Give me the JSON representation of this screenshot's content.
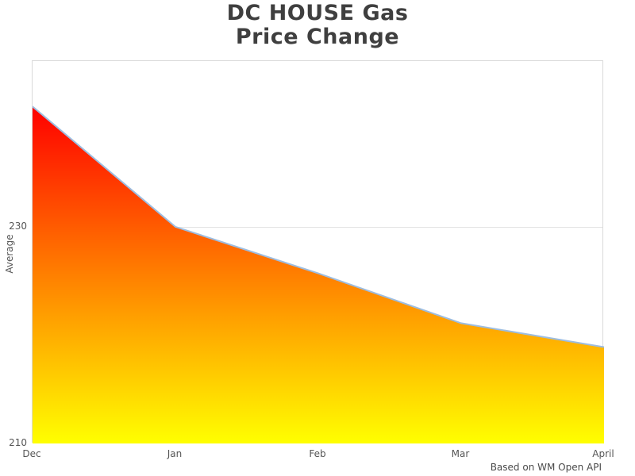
{
  "chart_data": {
    "type": "area",
    "title_lines": [
      "DC HOUSE Gas",
      "Price Change"
    ],
    "title": "DC HOUSE Gas Price Change",
    "categories": [
      "Dec",
      "Jan",
      "Feb",
      "Mar",
      "April"
    ],
    "series": [
      {
        "name": "Average",
        "values": [
          241.1,
          230.0,
          225.7,
          221.1,
          218.9
        ]
      }
    ],
    "xlabel": "",
    "ylabel": "Average",
    "yticks": [
      230,
      210
    ],
    "grid_values": [
      230
    ],
    "ylim": [
      210,
      245.3
    ],
    "baseline": 210,
    "legend": "none",
    "source_note": "Based on WM Open API",
    "colors": {
      "gradient_top": "#ff0000",
      "gradient_bottom": "#ffff00",
      "line": "#9dbde0",
      "gridline": "#e3e3e3",
      "plot_border": "#d9d9d9",
      "title_text": "#3f3f3f",
      "axis_text": "#555555",
      "note_text": "#4a4a4a"
    }
  }
}
